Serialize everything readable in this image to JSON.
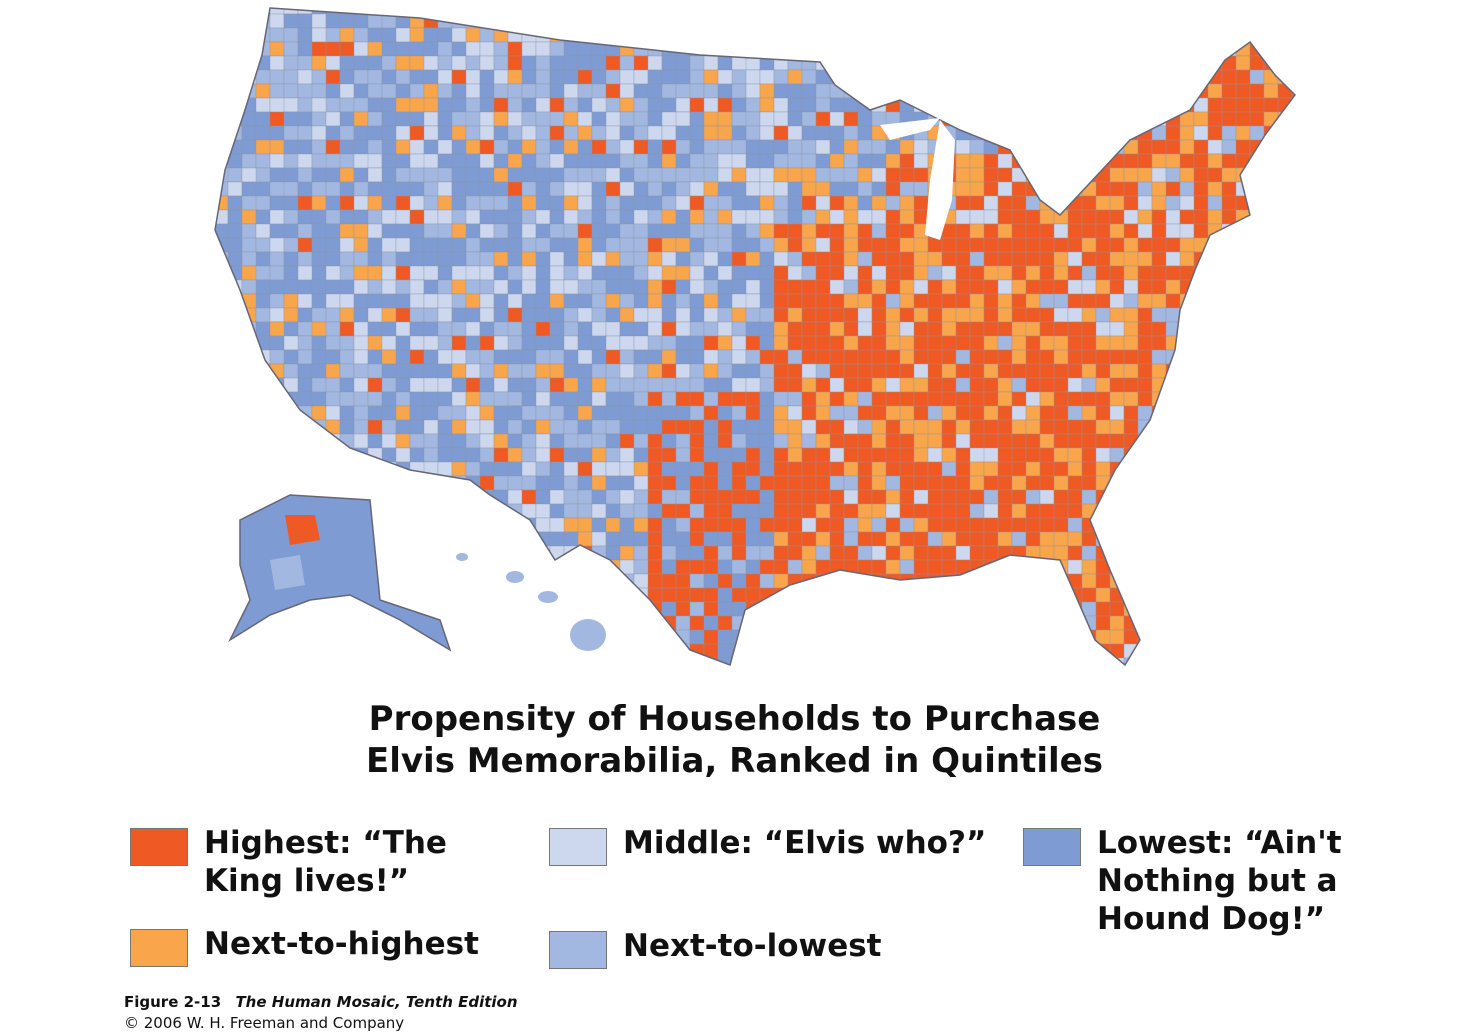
{
  "title": {
    "lines": [
      "Propensity of Households to Purchase",
      "Elvis Memorabilia, Ranked in Quintiles"
    ]
  },
  "legend": [
    {
      "label": "Highest: “The King lives!”",
      "color": "#ef5a24"
    },
    {
      "label": "Next-to-highest",
      "color": "#f9a54b"
    },
    {
      "label": "Middle: “Elvis who?”",
      "color": "#cdd8ef"
    },
    {
      "label": "Next-to-lowest",
      "color": "#a3b8e0"
    },
    {
      "label": "Lowest: “Ain't Nothing but a Hound Dog!”",
      "color": "#7e9bd3"
    }
  ],
  "caption": {
    "figure": "Figure 2-13",
    "book": "The Human Mosaic, Tenth Edition",
    "copyright": "© 2006 W. H. Freeman and Company"
  }
}
